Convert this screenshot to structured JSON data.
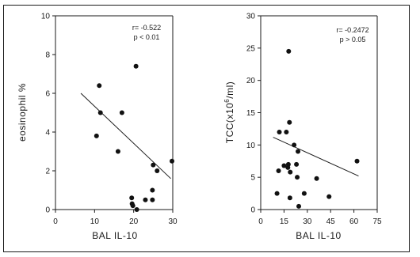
{
  "chart_data": [
    {
      "type": "scatter",
      "title": "",
      "xlabel": "BAL IL-10",
      "ylabel": "eosinophil %",
      "xlim": [
        0,
        30
      ],
      "ylim": [
        0,
        10
      ],
      "xticks": [
        "0",
        "10",
        "20",
        "30"
      ],
      "yticks": [
        "0",
        "2",
        "4",
        "6",
        "8",
        "10"
      ],
      "annotations": [
        "r= -0.522",
        "p < 0.01"
      ],
      "points": [
        {
          "x": 10.5,
          "y": 3.8
        },
        {
          "x": 11.2,
          "y": 6.4
        },
        {
          "x": 11.5,
          "y": 5.0
        },
        {
          "x": 16.0,
          "y": 3.0
        },
        {
          "x": 17.0,
          "y": 5.0
        },
        {
          "x": 19.5,
          "y": 0.6
        },
        {
          "x": 19.6,
          "y": 0.3
        },
        {
          "x": 19.8,
          "y": 0.2
        },
        {
          "x": 20.6,
          "y": 7.4
        },
        {
          "x": 20.8,
          "y": 0.0
        },
        {
          "x": 23.0,
          "y": 0.5
        },
        {
          "x": 24.8,
          "y": 0.5
        },
        {
          "x": 24.8,
          "y": 1.0
        },
        {
          "x": 25.0,
          "y": 2.3
        },
        {
          "x": 26.0,
          "y": 2.0
        },
        {
          "x": 29.8,
          "y": 2.5
        }
      ],
      "fit_line": [
        {
          "x": 6.5,
          "y": 6.0
        },
        {
          "x": 29.5,
          "y": 1.6
        }
      ]
    },
    {
      "type": "scatter",
      "title": "",
      "xlabel": "BAL IL-10",
      "ylabel": "TCC(x10",
      "ylabel_sup": "6",
      "ylabel_tail": "/ml)",
      "xlim": [
        0,
        75
      ],
      "ylim": [
        0,
        30
      ],
      "xticks": [
        "0",
        "15",
        "30",
        "45",
        "60",
        "75"
      ],
      "yticks": [
        "0",
        "5",
        "10",
        "15",
        "20",
        "25",
        "30"
      ],
      "annotations": [
        "r= -0.2472",
        "p > 0.05"
      ],
      "points": [
        {
          "x": 10.5,
          "y": 2.5
        },
        {
          "x": 11.5,
          "y": 6.0
        },
        {
          "x": 12.0,
          "y": 12.0
        },
        {
          "x": 15.0,
          "y": 6.8
        },
        {
          "x": 16.5,
          "y": 12.0
        },
        {
          "x": 17.5,
          "y": 6.5
        },
        {
          "x": 17.8,
          "y": 7.0
        },
        {
          "x": 18.0,
          "y": 24.5
        },
        {
          "x": 18.5,
          "y": 13.5
        },
        {
          "x": 18.8,
          "y": 1.8
        },
        {
          "x": 19.0,
          "y": 5.8
        },
        {
          "x": 21.5,
          "y": 10.0
        },
        {
          "x": 23.0,
          "y": 7.0
        },
        {
          "x": 23.5,
          "y": 5.0
        },
        {
          "x": 24.0,
          "y": 9.0
        },
        {
          "x": 24.5,
          "y": 0.5
        },
        {
          "x": 28.0,
          "y": 2.5
        },
        {
          "x": 36.0,
          "y": 4.8
        },
        {
          "x": 44.0,
          "y": 2.0
        },
        {
          "x": 62.0,
          "y": 7.5
        }
      ],
      "fit_line": [
        {
          "x": 8.0,
          "y": 11.2
        },
        {
          "x": 63.0,
          "y": 5.2
        }
      ]
    }
  ]
}
